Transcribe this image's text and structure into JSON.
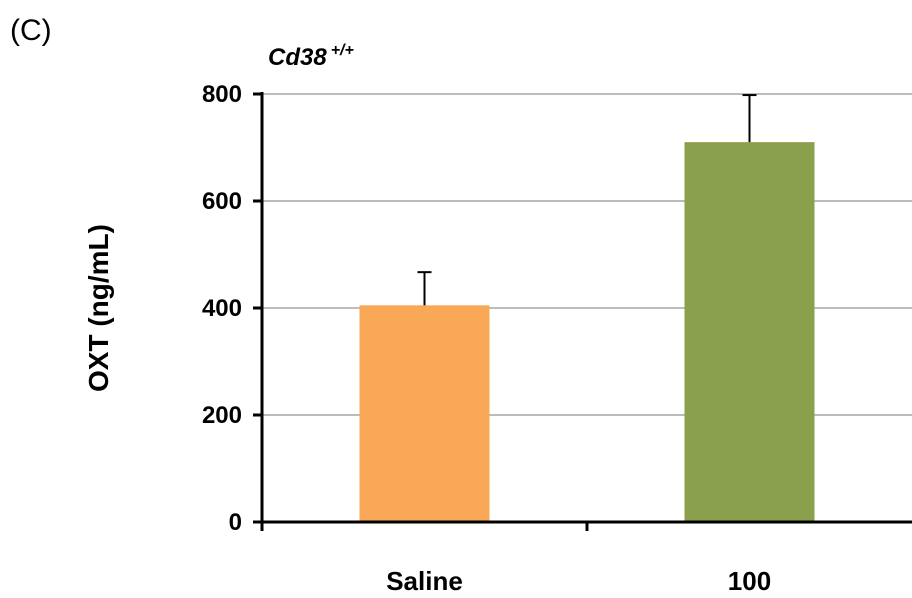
{
  "panel_label": "(C)",
  "chart_data": {
    "type": "bar",
    "title": "Cd38",
    "title_superscript": "+/+",
    "categories": [
      "Saline",
      "100"
    ],
    "values": [
      405,
      710
    ],
    "errors": [
      62,
      88
    ],
    "ylabel": "OXT (ng/mL)",
    "xlabel": "",
    "ylim": [
      0,
      800
    ],
    "yticks": [
      0,
      200,
      400,
      600,
      800
    ],
    "grid": true,
    "legend": "none",
    "colors": [
      "#F9A857",
      "#8BA04C"
    ],
    "grid_color": "#a6a6a6",
    "axis_color": "#000000"
  }
}
